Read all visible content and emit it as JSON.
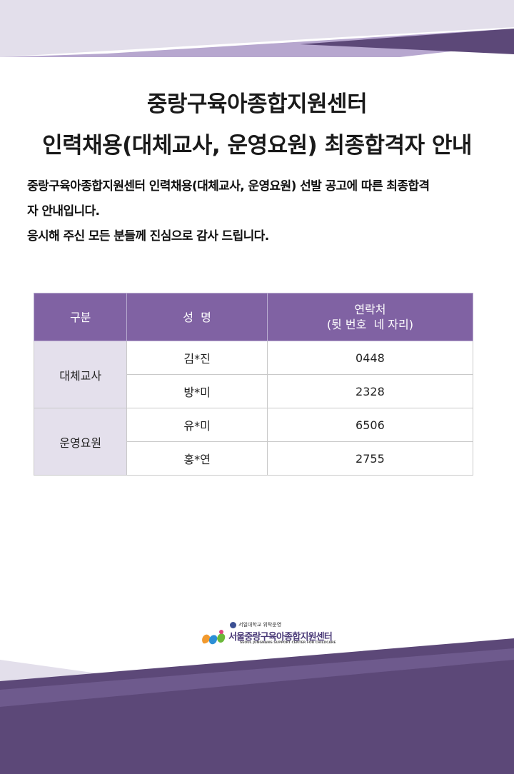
{
  "title": {
    "line1": "중랑구육아종합지원센터",
    "line2": "인력채용(대체교사, 운영요원) 최종합격자 안내"
  },
  "intro": {
    "line1": "중랑구육아종합지원센터 인력채용(대체교사, 운영요원) 선발 공고에 따른 최종합격",
    "line2": "자 안내입니다.",
    "line3": "응시해 주신 모든 분들께 진심으로 감사 드립니다."
  },
  "table": {
    "headers": {
      "category": "구분",
      "name": "성  명",
      "contact_line1": "연락처",
      "contact_line2": "(뒷 번호  네 자리)"
    },
    "groups": [
      {
        "category": "대체교사",
        "rows": [
          {
            "name": "김*진",
            "contact": "0448"
          },
          {
            "name": "방*미",
            "contact": "2328"
          }
        ]
      },
      {
        "category": "운영요원",
        "rows": [
          {
            "name": "유*미",
            "contact": "6506"
          },
          {
            "name": "홍*연",
            "contact": "2755"
          }
        ]
      }
    ]
  },
  "logo": {
    "top_text": "서일대학교 위탁운영",
    "name": "서울중랑구육아종합지원센터",
    "english": "SEOUL JUNGNANG SUPPORT CENTER FOR CHILDCARE"
  },
  "colors": {
    "accent_purple": "#8062a3",
    "dark_purple": "#5c4878",
    "light_purple": "#e4e0ec"
  }
}
